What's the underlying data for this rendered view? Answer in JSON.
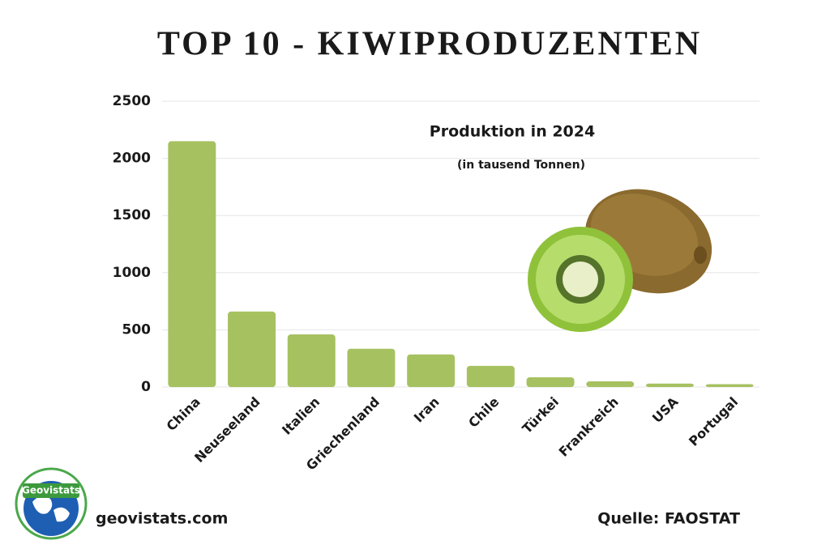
{
  "chart_data": {
    "type": "bar",
    "title": "TOP 10 - KIWIPRODUZENTEN",
    "subtitle": "Produktion in 2024",
    "unit_note": "(in tausend Tonnen)",
    "categories": [
      "China",
      "Neuseeland",
      "Italien",
      "Griechenland",
      "Iran",
      "Chile",
      "Türkei",
      "Frankreich",
      "USA",
      "Portugal"
    ],
    "values": [
      2150,
      660,
      460,
      335,
      285,
      185,
      85,
      50,
      30,
      25
    ],
    "color": "#a6c160",
    "ylim": [
      0,
      2500
    ],
    "yticks": [
      0,
      500,
      1000,
      1500,
      2000,
      2500
    ],
    "grid": true
  },
  "footer": {
    "logo_text": "Geovistats",
    "website": "geovistats.com",
    "source": "Quelle: FAOSTAT"
  }
}
